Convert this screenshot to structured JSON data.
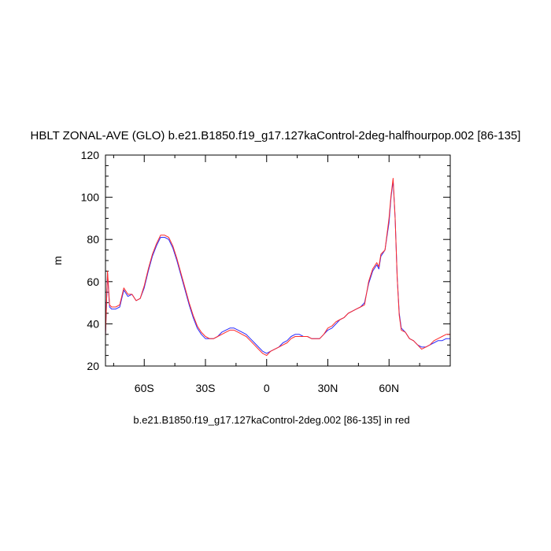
{
  "chart_data": {
    "type": "line",
    "title": "HBLT ZONAL-AVE (GLO) b.e21.B1850.f19_g17.127kaControl-2deg-halfhourpop.002 [86-135]",
    "ylabel": "m",
    "footnote": "b.e21.B1850.f19_g17.127kaControl-2deg.002 [86-135] in red",
    "xlim": [
      -79,
      90
    ],
    "ylim": [
      20,
      120
    ],
    "yticks": [
      20,
      40,
      60,
      80,
      100,
      120
    ],
    "xticks": [
      {
        "value": -60,
        "label": "60S"
      },
      {
        "value": -30,
        "label": "30S"
      },
      {
        "value": 0,
        "label": "0"
      },
      {
        "value": 30,
        "label": "30N"
      },
      {
        "value": 60,
        "label": "60N"
      }
    ],
    "colors": {
      "series_blue": "#2a2aff",
      "series_red": "#ff2a2a"
    },
    "series": [
      {
        "color": "blue",
        "x": [
          -79,
          -78,
          -77,
          -76,
          -74,
          -72,
          -70,
          -68,
          -66,
          -64,
          -62,
          -60,
          -58,
          -56,
          -54,
          -52,
          -50,
          -48,
          -46,
          -44,
          -42,
          -40,
          -38,
          -36,
          -34,
          -32,
          -30,
          -28,
          -26,
          -24,
          -22,
          -20,
          -18,
          -16,
          -14,
          -12,
          -10,
          -8,
          -6,
          -4,
          -2,
          0,
          2,
          4,
          6,
          8,
          10,
          12,
          14,
          16,
          18,
          20,
          22,
          24,
          26,
          28,
          30,
          32,
          34,
          36,
          38,
          40,
          42,
          44,
          46,
          48,
          50,
          52,
          54,
          55,
          56,
          58,
          60,
          61,
          62,
          63,
          64,
          65,
          66,
          68,
          70,
          72,
          74,
          76,
          78,
          80,
          82,
          84,
          86,
          88,
          90
        ],
        "y": [
          35,
          64,
          48,
          47,
          47,
          48,
          56,
          53,
          54,
          51,
          52,
          57,
          65,
          72,
          77,
          81,
          81,
          80,
          76,
          70,
          63,
          56,
          49,
          43,
          38,
          35,
          33,
          33,
          33,
          34,
          36,
          37,
          38,
          38,
          37,
          36,
          35,
          33,
          31,
          29,
          27,
          26,
          27,
          28,
          29,
          31,
          32,
          34,
          35,
          35,
          34,
          34,
          33,
          33,
          33,
          35,
          37,
          38,
          40,
          42,
          43,
          45,
          46,
          47,
          48,
          50,
          59,
          65,
          68,
          66,
          72,
          75,
          88,
          100,
          108,
          90,
          62,
          45,
          38,
          36,
          33,
          32,
          30,
          29,
          29,
          30,
          31,
          32,
          32,
          33,
          33
        ]
      },
      {
        "color": "red",
        "x": [
          -79,
          -78,
          -77,
          -76,
          -74,
          -72,
          -70,
          -68,
          -66,
          -64,
          -62,
          -60,
          -58,
          -56,
          -54,
          -52,
          -50,
          -48,
          -46,
          -44,
          -42,
          -40,
          -38,
          -36,
          -34,
          -32,
          -30,
          -28,
          -26,
          -24,
          -22,
          -20,
          -18,
          -16,
          -14,
          -12,
          -10,
          -8,
          -6,
          -4,
          -2,
          0,
          2,
          4,
          6,
          8,
          10,
          12,
          14,
          16,
          18,
          20,
          22,
          24,
          26,
          28,
          30,
          32,
          34,
          36,
          38,
          40,
          42,
          44,
          46,
          48,
          50,
          52,
          54,
          55,
          56,
          58,
          60,
          61,
          62,
          63,
          64,
          65,
          66,
          68,
          70,
          72,
          74,
          76,
          78,
          80,
          82,
          84,
          86,
          88,
          90
        ],
        "y": [
          34,
          65,
          49,
          48,
          48,
          49,
          57,
          54,
          54,
          51,
          52,
          58,
          66,
          73,
          78,
          82,
          82,
          81,
          77,
          71,
          64,
          57,
          50,
          44,
          39,
          36,
          34,
          33,
          33,
          34,
          35,
          36,
          37,
          37,
          36,
          35,
          34,
          32,
          30,
          28,
          26,
          25,
          27,
          28,
          29,
          30,
          31,
          33,
          34,
          34,
          34,
          34,
          33,
          33,
          33,
          35,
          38,
          39,
          41,
          42,
          43,
          45,
          46,
          47,
          48,
          49,
          60,
          66,
          69,
          67,
          73,
          75,
          90,
          101,
          109,
          90,
          62,
          44,
          37,
          36,
          33,
          32,
          30,
          28,
          29,
          30,
          32,
          33,
          34,
          35,
          35
        ]
      }
    ]
  }
}
